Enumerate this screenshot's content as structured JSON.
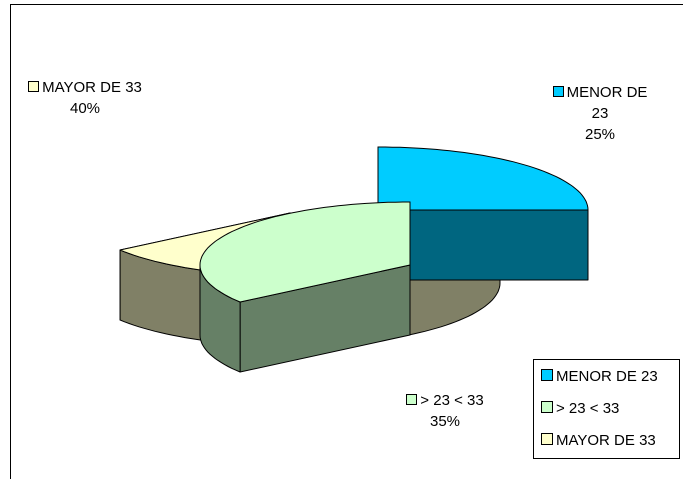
{
  "chart_data": {
    "type": "pie",
    "three_d": true,
    "exploded": true,
    "title": "",
    "slices": [
      {
        "label": "MENOR DE 23",
        "label_lines": [
          "MENOR DE",
          "23"
        ],
        "value": 25,
        "percent_label": "25%",
        "color": "#00CCFF",
        "side_color": "#006680"
      },
      {
        "label": "> 23 < 33",
        "label_lines": [
          "> 23 < 33"
        ],
        "value": 35,
        "percent_label": "35%",
        "color": "#CCFFCC",
        "side_color": "#668066"
      },
      {
        "label": "MAYOR DE 33",
        "label_lines": [
          "MAYOR DE 33"
        ],
        "value": 40,
        "percent_label": "40%",
        "color": "#FFFFCC",
        "side_color": "#808066"
      }
    ],
    "legend": {
      "position": "bottom-right",
      "entries": [
        "MENOR DE 23",
        "> 23 < 33",
        "MAYOR DE 33"
      ]
    }
  }
}
